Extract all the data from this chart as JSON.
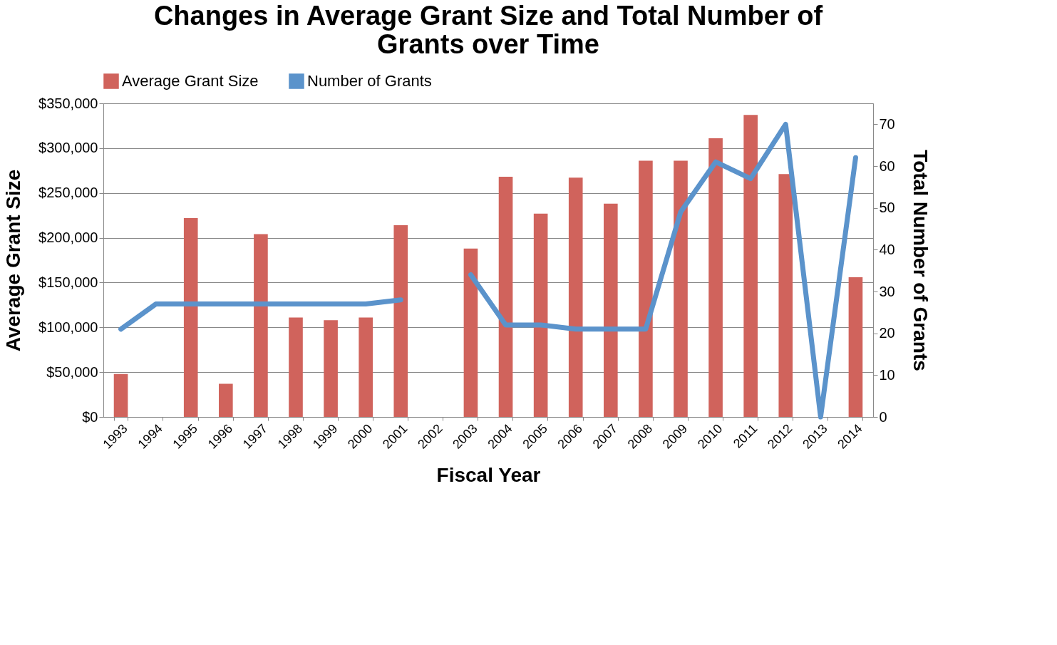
{
  "chart_data": {
    "type": "bar",
    "title": "Changes in Average Grant Size and Total Number of Grants over Time",
    "xlabel": "Fiscal Year",
    "ylabel": "Average Grant Size",
    "y2label": "Total Number of Grants",
    "categories": [
      "1993",
      "1994",
      "1995",
      "1996",
      "1997",
      "1998",
      "1999",
      "2000",
      "2001",
      "2002",
      "2003",
      "2004",
      "2005",
      "2006",
      "2007",
      "2008",
      "2009",
      "2010",
      "2011",
      "2012",
      "2013",
      "2014"
    ],
    "series": [
      {
        "name": "Average Grant Size",
        "color": "#d0635c",
        "values": [
          48000,
          null,
          222000,
          37000,
          204000,
          111000,
          108000,
          111000,
          214000,
          null,
          188000,
          268000,
          227000,
          267000,
          238000,
          286000,
          286000,
          311000,
          337000,
          271000,
          null,
          156000
        ]
      },
      {
        "name": "Number of Grants",
        "type": "line",
        "axis": "y2",
        "color": "#5b93cb",
        "values": [
          21,
          27,
          27,
          27,
          27,
          27,
          27,
          27,
          28,
          null,
          34,
          22,
          22,
          21,
          21,
          21,
          49,
          61,
          57,
          70,
          0,
          62
        ]
      }
    ],
    "ylim": [
      0,
      350000
    ],
    "yticks": [
      {
        "value": 0,
        "label": "$0"
      },
      {
        "value": 50000,
        "label": "$50,000"
      },
      {
        "value": 100000,
        "label": "$100,000"
      },
      {
        "value": 150000,
        "label": "$150,000"
      },
      {
        "value": 200000,
        "label": "$200,000"
      },
      {
        "value": 250000,
        "label": "$250,000"
      },
      {
        "value": 300000,
        "label": "$300,000"
      },
      {
        "value": 350000,
        "label": "$350,000"
      }
    ],
    "y2lim": [
      0,
      75
    ],
    "y2ticks": [
      0,
      10,
      20,
      30,
      40,
      50,
      60,
      70
    ],
    "grid": "y",
    "legend": "top",
    "line_style": "solid",
    "marker": "none"
  }
}
